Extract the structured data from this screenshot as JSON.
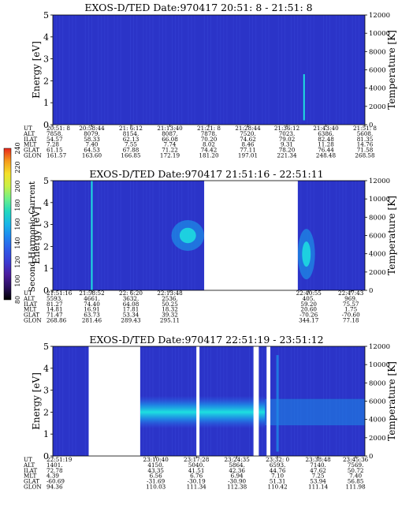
{
  "colorbar": {
    "label": "Second Harmonic Current",
    "ticks": [
      "80",
      "100",
      "120",
      "140",
      "160",
      "180",
      "200",
      "220",
      "240"
    ],
    "stops": [
      "#000000",
      "#2a0f5e",
      "#4b1c9e",
      "#3b3bd4",
      "#2f5be8",
      "#1f86f0",
      "#18b6e8",
      "#22d8c0",
      "#6ef08a",
      "#c8f046",
      "#f4e02a",
      "#f59a1c",
      "#e8261c"
    ]
  },
  "colors": {
    "background": "#2b34c8",
    "band_dense": "#1de0e0",
    "band_mid": "#1e8ae6",
    "band_edge": "#2f5be8",
    "gap": "#ffffff"
  },
  "chart_data": [
    {
      "type": "heatmap",
      "title": "EXOS-D/TED   Date:970417  20:51: 8 - 21:51: 8",
      "ylabel": "Energy [eV]",
      "y2label": "Temperature [K]",
      "ylim": [
        0,
        5
      ],
      "y2lim": [
        0,
        12000
      ],
      "y_ticks": [
        "0",
        "1",
        "2",
        "3",
        "4",
        "5"
      ],
      "y2_ticks": [
        "0",
        "2000",
        "4000",
        "6000",
        "8000",
        "10000",
        "12000"
      ],
      "x_range": [
        "20:51: 8",
        "21:51: 8"
      ],
      "gaps": [],
      "features": [
        {
          "type": "spike",
          "x_frac": 0.805,
          "from": 0.2,
          "to": 2.3
        }
      ],
      "rows": [
        {
          "label": "UT",
          "values": [
            "20:51: 8",
            "20:58:44",
            "21: 6:12",
            "21:13:40",
            "21:21: 8",
            "21:28:44",
            "21:36:12",
            "21:43:40",
            "21:51: 8"
          ]
        },
        {
          "label": "ALT",
          "values": [
            "7858.",
            "8079.",
            "8154.",
            "8087.",
            "7878.",
            "7520.",
            "7023.",
            "6386.",
            "5608."
          ]
        },
        {
          "label": "ILAT",
          "values": [
            "54.57",
            "58.33",
            "62.13",
            "66.08",
            "70.20",
            "74.62",
            "79.02",
            "82.48",
            "81.35"
          ]
        },
        {
          "label": "MLT",
          "values": [
            "7.28",
            "7.40",
            "7.55",
            "7.74",
            "8.02",
            "8.46",
            "9.31",
            "11.28",
            "14.76"
          ]
        },
        {
          "label": "GLAT",
          "values": [
            "61.15",
            "64.53",
            "67.88",
            "71.22",
            "74.42",
            "77.11",
            "78.20",
            "76.44",
            "71.58"
          ]
        },
        {
          "label": "GLON",
          "values": [
            "161.57",
            "163.60",
            "166.85",
            "172.19",
            "181.20",
            "197.01",
            "221.34",
            "248.48",
            "268.58"
          ]
        }
      ]
    },
    {
      "type": "heatmap",
      "title": "EXOS-D/TED   Date:970417  21:51:16 - 22:51:11",
      "ylabel": "Energy [eV]",
      "y2label": "Temperature [K]",
      "ylim": [
        0,
        5
      ],
      "y2lim": [
        0,
        12000
      ],
      "y_ticks": [
        "0",
        "1",
        "2",
        "3",
        "4",
        "5"
      ],
      "y2_ticks": [
        "0",
        "2000",
        "4000",
        "6000",
        "8000",
        "10000",
        "12000"
      ],
      "x_range": [
        "21:51:16",
        "22:51:11"
      ],
      "gaps": [
        [
          0.485,
          0.785
        ]
      ],
      "features": [
        {
          "type": "spike",
          "x_frac": 0.125,
          "from": 0.0,
          "to": 5.0
        },
        {
          "type": "blob",
          "x_from": 0.38,
          "x_to": 0.485,
          "y_from": 1.8,
          "y_to": 3.2
        },
        {
          "type": "blob",
          "x_from": 0.785,
          "x_to": 0.84,
          "y_from": 0.5,
          "y_to": 2.8
        }
      ],
      "rows": [
        {
          "label": "UT",
          "values": [
            "21:51:16",
            "21:58:52",
            "22: 6:20",
            "22:13:48",
            "22:40:55",
            "22:47:43"
          ]
        },
        {
          "label": "ALT",
          "values": [
            "5593.",
            "4661.",
            "3632.",
            "2536.",
            "405.",
            "969."
          ]
        },
        {
          "label": "ILAT",
          "values": [
            "81.27",
            "74.40",
            "64.08",
            "50.25",
            "59.20",
            "75.57"
          ]
        },
        {
          "label": "MLT",
          "values": [
            "14.81",
            "16.91",
            "17.81",
            "18.32",
            "20.60",
            "1.75"
          ]
        },
        {
          "label": "GLAT",
          "values": [
            "71.47",
            "63.73",
            "53.34",
            "39.32",
            "-70.26",
            "-70.60"
          ]
        },
        {
          "label": "GLON",
          "values": [
            "268.86",
            "281.46",
            "289.43",
            "295.11",
            "344.17",
            "77.18"
          ]
        }
      ]
    },
    {
      "type": "heatmap",
      "title": "EXOS-D/TED   Date:970417  22:51:19 - 23:51:12",
      "ylabel": "Energy [eV]",
      "y2label": "Temperature [K]",
      "ylim": [
        0,
        5
      ],
      "y2lim": [
        0,
        12000
      ],
      "y_ticks": [
        "0",
        "1",
        "2",
        "3",
        "4",
        "5"
      ],
      "y2_ticks": [
        "0",
        "2000",
        "4000",
        "6000",
        "8000",
        "10000",
        "12000"
      ],
      "x_range": [
        "22:51:19",
        "23:51:12"
      ],
      "gaps": [
        [
          0.115,
          0.28
        ],
        [
          0.46,
          0.47
        ],
        [
          0.643,
          0.66
        ],
        [
          0.685,
          0.697
        ]
      ],
      "band": {
        "center": 2.0,
        "half_width": 0.75,
        "x_from": 0.28,
        "x_to": 0.68
      },
      "features": [
        {
          "type": "streak",
          "x_frac": 0.72,
          "from": 0.2,
          "to": 4.6
        }
      ],
      "rows": [
        {
          "label": "UT",
          "values": [
            "22:51:19",
            "23:10:40",
            "23:17:28",
            "23:24:35",
            "23:32: 0",
            "23:38:48",
            "23:45:36"
          ]
        },
        {
          "label": "ALT",
          "values": [
            "1401.",
            "4150.",
            "5040.",
            "5864.",
            "6593.",
            "7140.",
            "7569."
          ]
        },
        {
          "label": "ILAT",
          "values": [
            "72.78",
            "43.35",
            "41.51",
            "42.36",
            "44.76",
            "47.62",
            "50.72"
          ]
        },
        {
          "label": "MLT",
          "values": [
            "4.39",
            "6.56",
            "6.76",
            "6.94",
            "7.10",
            "7.25",
            "7.40"
          ]
        },
        {
          "label": "GLAT",
          "values": [
            "-60.69",
            "-31.69",
            "-30.19",
            "-30.90",
            "51.31",
            "53.94",
            "56.85"
          ]
        },
        {
          "label": "GLON",
          "values": [
            "94.36",
            "110.03",
            "111.34",
            "112.38",
            "110.42",
            "111.14",
            "111.98"
          ]
        }
      ]
    }
  ]
}
